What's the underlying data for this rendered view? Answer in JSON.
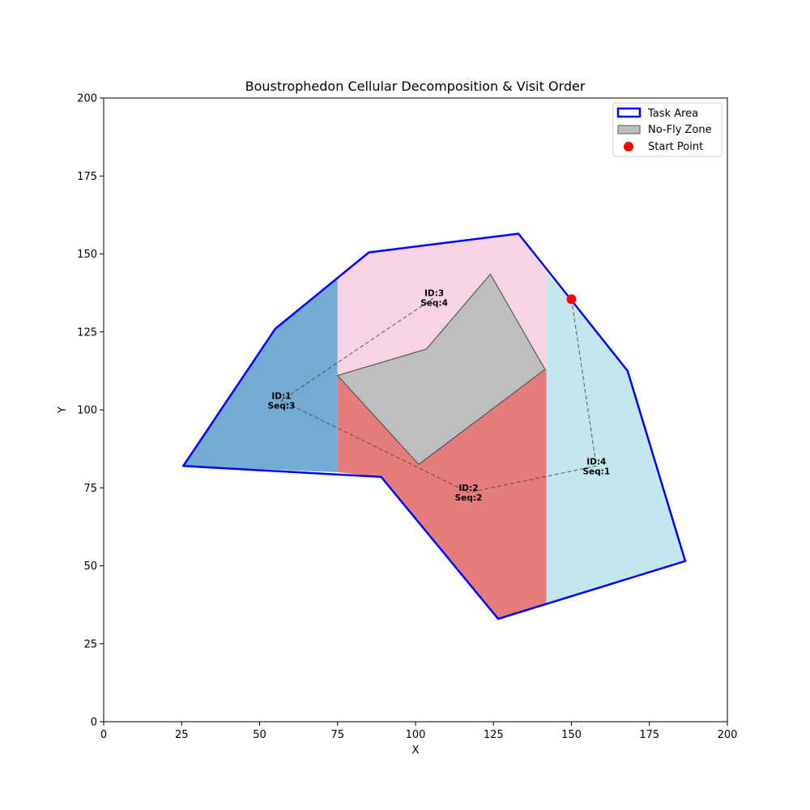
{
  "chart_data": {
    "type": "polygon-map",
    "title": "Boustrophedon Cellular Decomposition & Visit Order",
    "xlabel": "X",
    "ylabel": "Y",
    "xlim": [
      0,
      200
    ],
    "ylim": [
      0,
      200
    ],
    "xticks": [
      0,
      25,
      50,
      75,
      100,
      125,
      150,
      175,
      200
    ],
    "yticks": [
      0,
      25,
      50,
      75,
      100,
      125,
      150,
      175,
      200
    ],
    "task_area": {
      "label": "Task Area",
      "color": "#0000ff",
      "points": [
        [
          25.5,
          82
        ],
        [
          55,
          126
        ],
        [
          85,
          150.5
        ],
        [
          133,
          156.5
        ],
        [
          168,
          112.5
        ],
        [
          186.5,
          51.5
        ],
        [
          126.5,
          33
        ],
        [
          89,
          78.5
        ],
        [
          25.5,
          82
        ]
      ]
    },
    "no_fly_zone": {
      "label": "No-Fly Zone",
      "fill": "#bebebe",
      "edge": "#555555",
      "points": [
        [
          75,
          111
        ],
        [
          103.5,
          119.5
        ],
        [
          124,
          143.5
        ],
        [
          141.5,
          113
        ],
        [
          101,
          82.5
        ],
        [
          75,
          111
        ]
      ]
    },
    "start_point": {
      "label": "Start Point",
      "color": "#ff0000",
      "x": 150,
      "y": 135.5
    },
    "cells": [
      {
        "id": 1,
        "seq": 3,
        "label": "ID:1\nSeq:3",
        "line1": "ID:1",
        "line2": "Seq:3",
        "color": "#74abd0",
        "points": [
          [
            25.5,
            82
          ],
          [
            55,
            126
          ],
          [
            75,
            142
          ],
          [
            75,
            80
          ],
          [
            25.5,
            82
          ]
        ],
        "center": [
          57,
          103
        ]
      },
      {
        "id": 2,
        "seq": 2,
        "label": "ID:2\nSeq:2",
        "line1": "ID:2",
        "line2": "Seq:2",
        "color": "#e57d7d",
        "points": [
          [
            75,
            111
          ],
          [
            101,
            82.5
          ],
          [
            141.5,
            113
          ],
          [
            142,
            113
          ],
          [
            142,
            38
          ],
          [
            126.5,
            33
          ],
          [
            89,
            78.5
          ],
          [
            75,
            80
          ],
          [
            75,
            111
          ]
        ],
        "center": [
          117,
          73.5
        ]
      },
      {
        "id": 3,
        "seq": 4,
        "label": "ID:3\nSeq:4",
        "line1": "ID:3",
        "line2": "Seq:4",
        "color": "#f8d3e4",
        "points": [
          [
            75,
            142
          ],
          [
            85,
            150.5
          ],
          [
            133,
            156.5
          ],
          [
            142,
            144
          ],
          [
            142,
            113
          ],
          [
            141.5,
            113
          ],
          [
            124,
            143.5
          ],
          [
            103.5,
            119.5
          ],
          [
            75,
            111
          ],
          [
            75,
            142
          ]
        ],
        "center": [
          106,
          136
        ]
      },
      {
        "id": 4,
        "seq": 1,
        "label": "ID:4\nSeq:1",
        "line1": "ID:4",
        "line2": "Seq:1",
        "color": "#c3e6ef",
        "points": [
          [
            142,
            144
          ],
          [
            168,
            112.5
          ],
          [
            186.5,
            51.5
          ],
          [
            142,
            38
          ],
          [
            142,
            144
          ]
        ],
        "center": [
          158,
          82
        ]
      }
    ],
    "visit_path": {
      "order": [
        1,
        2,
        3,
        4
      ],
      "style": "dashed",
      "points": [
        [
          150,
          135.5
        ],
        [
          158,
          82
        ],
        [
          117,
          73.5
        ],
        [
          57,
          103
        ],
        [
          106,
          136
        ]
      ]
    },
    "legend": {
      "position": "top-right",
      "entries": [
        "Task Area",
        "No-Fly Zone",
        "Start Point"
      ]
    }
  }
}
